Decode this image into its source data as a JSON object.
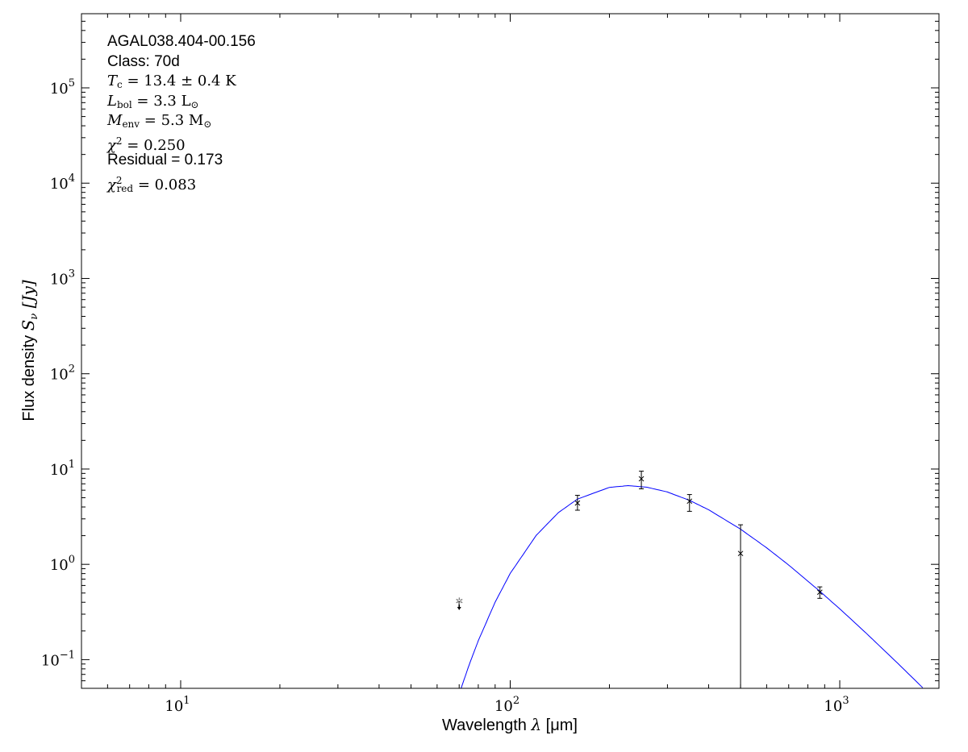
{
  "annotations": {
    "source": "AGAL038.404-00.156",
    "class": "Class: 70d",
    "tc": {
      "sym": "T",
      "sub": "c",
      "rest": " = 13.4 ± 0.4 K"
    },
    "lbol": {
      "sym": "L",
      "sub": "bol",
      "rest": " = 3.3 L",
      "rest_sub": "⊙"
    },
    "menv": {
      "sym": "M",
      "sub": "env",
      "rest": " = 5.3 M",
      "rest_sub": "⊙"
    },
    "chi2": {
      "sym": "χ",
      "sup": "2",
      "rest": " = 0.250"
    },
    "residual": "Residual = 0.173",
    "chi2red": {
      "sym": "χ",
      "sup": "2",
      "sub": "red",
      "rest": " = 0.083"
    }
  },
  "chart_data": {
    "type": "scatter",
    "xlabel": "Wavelength λ [μm]",
    "ylabel": "Flux density S_ν [Jy]",
    "xlabel_parts": {
      "text": "Wavelength ",
      "sym": "λ",
      "unit": " [μm]"
    },
    "ylabel_parts": {
      "text": "Flux density ",
      "sym": "S",
      "sub": "ν",
      "unit": " [Jy]"
    },
    "xscale": "log",
    "yscale": "log",
    "xlim": [
      5,
      2000
    ],
    "ylim": [
      0.05,
      600000
    ],
    "grid": false,
    "x_ticks": [
      {
        "value": 10,
        "base": "10",
        "exp": "1"
      },
      {
        "value": 100,
        "base": "10",
        "exp": "2"
      },
      {
        "value": 1000,
        "base": "10",
        "exp": "3"
      }
    ],
    "y_ticks": [
      {
        "value": 0.1,
        "base": "10",
        "exp": "−1"
      },
      {
        "value": 1,
        "base": "10",
        "exp": "0"
      },
      {
        "value": 10,
        "base": "10",
        "exp": "1"
      },
      {
        "value": 100,
        "base": "10",
        "exp": "2"
      },
      {
        "value": 1000,
        "base": "10",
        "exp": "3"
      },
      {
        "value": 10000,
        "base": "10",
        "exp": "4"
      },
      {
        "value": 100000,
        "base": "10",
        "exp": "5"
      }
    ],
    "points": [
      {
        "x": 160,
        "y": 4.4,
        "err_lo": 3.7,
        "err_hi": 5.3
      },
      {
        "x": 250,
        "y": 7.9,
        "err_lo": 6.2,
        "err_hi": 9.5
      },
      {
        "x": 350,
        "y": 4.6,
        "err_lo": 3.6,
        "err_hi": 5.4
      },
      {
        "x": 500,
        "y": 1.3,
        "err_lo": 0,
        "err_hi": 2.6
      },
      {
        "x": 870,
        "y": 0.51,
        "err_lo": 0.44,
        "err_hi": 0.58
      }
    ],
    "upper_limits": [
      {
        "x": 70,
        "y": 0.41
      }
    ],
    "model_curve": {
      "color": "#0000ff",
      "x": [
        70,
        75,
        80,
        90,
        100,
        120,
        140,
        160,
        200,
        228,
        260,
        300,
        350,
        400,
        500,
        600,
        700,
        870,
        1000,
        1200,
        1500,
        1785
      ],
      "y": [
        0.0437,
        0.0875,
        0.158,
        0.401,
        0.803,
        2.02,
        3.49,
        4.84,
        6.42,
        6.7,
        6.45,
        5.74,
        4.69,
        3.74,
        2.34,
        1.49,
        0.983,
        0.522,
        0.341,
        0.191,
        0.0915,
        0.0508
      ]
    },
    "colors": {
      "points": "#000000",
      "upper_limit": "#808080",
      "model": "#0000ff"
    }
  }
}
